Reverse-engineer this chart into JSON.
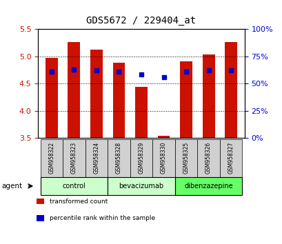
{
  "title": "GDS5672 / 229404_at",
  "samples": [
    "GSM958322",
    "GSM958323",
    "GSM958324",
    "GSM958328",
    "GSM958329",
    "GSM958330",
    "GSM958325",
    "GSM958326",
    "GSM958327"
  ],
  "bar_values": [
    4.97,
    5.26,
    5.12,
    4.89,
    4.44,
    3.54,
    4.91,
    5.04,
    5.27
  ],
  "bar_bottom": 3.5,
  "blue_dot_values": [
    4.72,
    4.76,
    4.75,
    4.72,
    4.67,
    4.62,
    4.72,
    4.74,
    4.75
  ],
  "ylim_left": [
    3.5,
    5.5
  ],
  "ylim_right": [
    0,
    100
  ],
  "yticks_left": [
    3.5,
    4.0,
    4.5,
    5.0,
    5.5
  ],
  "yticks_right": [
    0,
    25,
    50,
    75,
    100
  ],
  "groups": [
    {
      "label": "control",
      "indices": [
        0,
        1,
        2
      ],
      "color": "#ccffcc"
    },
    {
      "label": "bevacizumab",
      "indices": [
        3,
        4,
        5
      ],
      "color": "#ccffcc"
    },
    {
      "label": "dibenzazepine",
      "indices": [
        6,
        7,
        8
      ],
      "color": "#66ff66"
    }
  ],
  "bar_color": "#cc1100",
  "dot_color": "#0000cc",
  "bar_width": 0.55,
  "left_tick_color": "#cc1100",
  "right_tick_color": "#0000cc",
  "legend_items": [
    {
      "label": "transformed count",
      "color": "#cc1100"
    },
    {
      "label": "percentile rank within the sample",
      "color": "#0000cc"
    }
  ],
  "title_fontsize": 10,
  "tick_label_bg": "#d0d0d0"
}
